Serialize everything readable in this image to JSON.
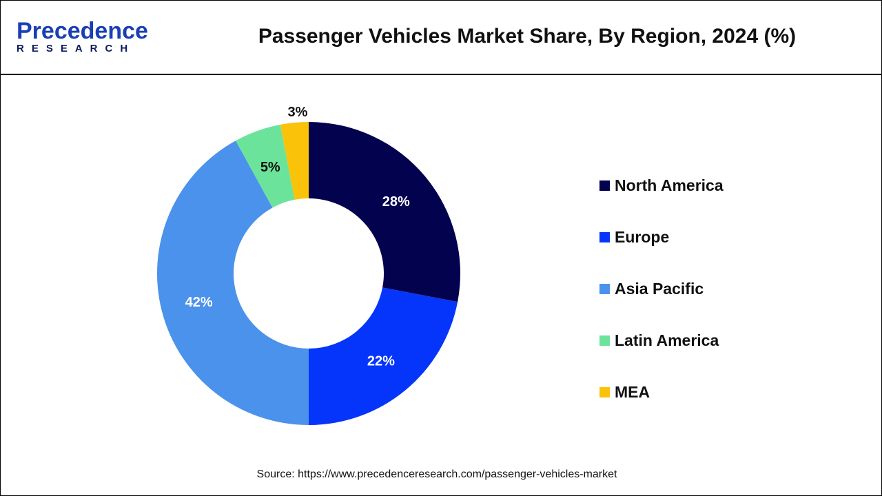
{
  "header": {
    "logo_text_top": "Precedence",
    "logo_text_bottom": "RESEARCH",
    "title": "Passenger Vehicles Market Share, By Region, 2024 (%)"
  },
  "chart_data": {
    "type": "pie",
    "variant": "donut",
    "title": "Passenger Vehicles Market Share, By Region, 2024 (%)",
    "categories": [
      "North America",
      "Europe",
      "Asia Pacific",
      "Latin America",
      "MEA"
    ],
    "values": [
      28,
      22,
      42,
      5,
      3
    ],
    "labels": [
      "28%",
      "22%",
      "42%",
      "5%",
      "3%"
    ],
    "colors": [
      "#02024f",
      "#0535fb",
      "#4a92ec",
      "#6be39b",
      "#fbc20a"
    ],
    "label_colors": [
      "#ffffff",
      "#ffffff",
      "#ffffff",
      "#111111",
      "#111111"
    ],
    "start": "top",
    "direction": "clockwise",
    "legend_position": "right"
  },
  "footer": {
    "source": "Source: https://www.precedenceresearch.com/passenger-vehicles-market"
  }
}
